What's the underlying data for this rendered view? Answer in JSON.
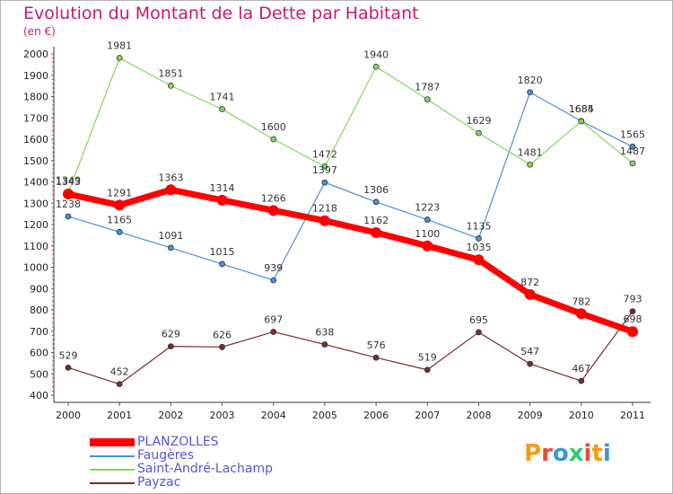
{
  "title": "Evolution du Montant de la Dette par Habitant",
  "unit_label": "(en €)",
  "logo": {
    "text": "Proxiti",
    "letters": [
      {
        "ch": "P",
        "color": "#f39c12"
      },
      {
        "ch": "r",
        "color": "#e74c3c"
      },
      {
        "ch": "o",
        "color": "#3498db"
      },
      {
        "ch": "x",
        "color": "#2ecc71"
      },
      {
        "ch": "i",
        "color": "#e74c3c"
      },
      {
        "ch": "t",
        "color": "#f39c12"
      },
      {
        "ch": "i",
        "color": "#3498db"
      }
    ]
  },
  "chart_data": {
    "type": "line",
    "title": "Evolution du Montant de la Dette par Habitant",
    "ylabel": "(en €)",
    "xlabel": "",
    "x": [
      "2000",
      "2001",
      "2002",
      "2003",
      "2004",
      "2005",
      "2006",
      "2007",
      "2008",
      "2009",
      "2010",
      "2011"
    ],
    "ylim": [
      400,
      2000
    ],
    "yticks": [
      400,
      500,
      600,
      700,
      800,
      900,
      1000,
      1100,
      1200,
      1300,
      1400,
      1500,
      1600,
      1700,
      1800,
      1900,
      2000
    ],
    "grid": false,
    "legend_position": "bottom-left",
    "series": [
      {
        "name": "PLANZOLLES",
        "color": "#ff0000",
        "values": [
          1343,
          1291,
          1363,
          1314,
          1266,
          1218,
          1162,
          1100,
          1035,
          872,
          782,
          698
        ]
      },
      {
        "name": "Faugères",
        "color": "#4a90d9",
        "values": [
          1238,
          1165,
          1091,
          1015,
          939,
          1397,
          1306,
          1223,
          1135,
          1820,
          1685,
          1565
        ]
      },
      {
        "name": "Saint-André-Lachamp",
        "color": "#7ed957",
        "values": [
          1349,
          1981,
          1851,
          1741,
          1600,
          1472,
          1940,
          1787,
          1629,
          1481,
          1684,
          1487
        ]
      },
      {
        "name": "Payzac",
        "color": "#7a2c2c",
        "values": [
          529,
          452,
          629,
          626,
          697,
          638,
          576,
          519,
          695,
          547,
          467,
          793
        ]
      }
    ]
  }
}
